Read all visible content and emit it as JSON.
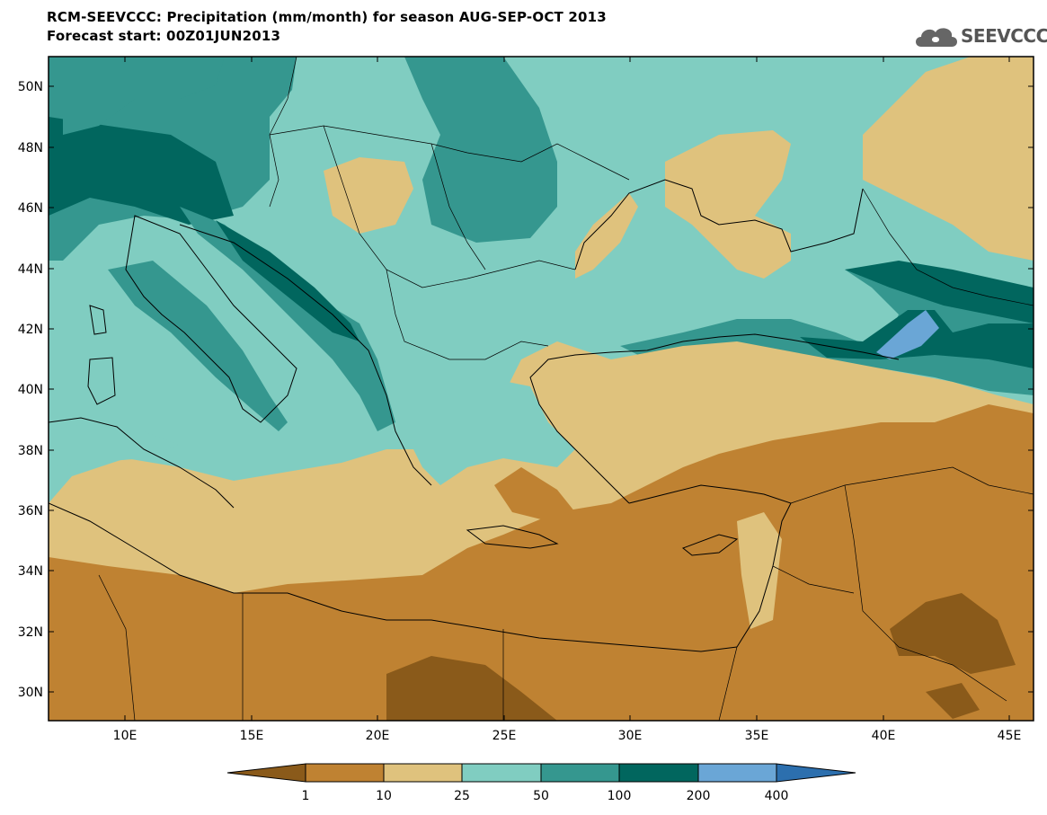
{
  "header": {
    "title_line1": "RCM-SEEVCCC: Precipitation (mm/month) for season AUG-SEP-OCT 2013",
    "title_line2": "Forecast start: 00Z01JUN2013",
    "logo_text": "SEEVCCC"
  },
  "map": {
    "lon_ticks": [
      "10E",
      "15E",
      "20E",
      "25E",
      "30E",
      "35E",
      "40E",
      "45E"
    ],
    "lat_ticks": [
      "50N",
      "48N",
      "46N",
      "44N",
      "42N",
      "40N",
      "38N",
      "36N",
      "34N",
      "32N",
      "30N"
    ]
  },
  "colorbar": {
    "labels": [
      "1",
      "10",
      "25",
      "50",
      "100",
      "200",
      "400"
    ],
    "colors": {
      "lt1": "#8a5a1a",
      "1_10": "#bf8232",
      "10_25": "#dfc27d",
      "25_50": "#80cdc1",
      "50_100": "#35978f",
      "100_200": "#01665e",
      "200_400": "#6aa6d6",
      "gt400": "#2c6fae"
    }
  }
}
